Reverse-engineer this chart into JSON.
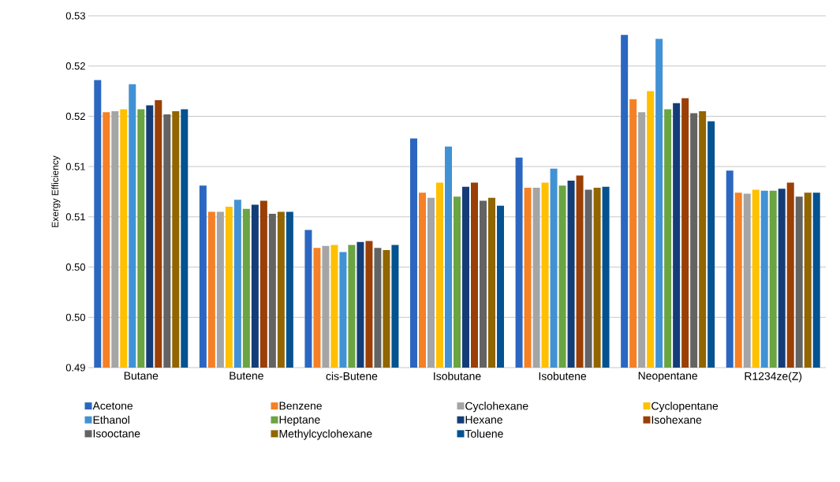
{
  "chart_data": {
    "type": "bar",
    "ylabel": "Exergy Efficiency",
    "categories": [
      "Butane",
      "Butene",
      "cis-Butene",
      "Isobutane",
      "Isobutene",
      "Neopentane",
      "R1234ze(Z)"
    ],
    "ylim": [
      0.49,
      0.525
    ],
    "yticks": [
      0.49,
      {
        "value": 0.495,
        "label": "0.50"
      },
      {
        "value": 0.5,
        "label": "0.50"
      },
      {
        "value": 0.505,
        "label": "0.51"
      },
      {
        "value": 0.51,
        "label": "0.51"
      },
      {
        "value": 0.515,
        "label": "0.52"
      },
      {
        "value": 0.52,
        "label": "0.52"
      },
      {
        "value": 0.525,
        "label": "0.53"
      }
    ],
    "grid": "y",
    "legend": "bottom",
    "series": [
      {
        "name": "Acetone",
        "color": "#2b67c0",
        "values": [
          0.5186,
          0.5081,
          0.5037,
          0.5128,
          0.5109,
          0.5231,
          0.5096
        ]
      },
      {
        "name": "Benzene",
        "color": "#f58025",
        "values": [
          0.5154,
          0.5055,
          0.5019,
          0.5074,
          0.5079,
          0.5167,
          0.5074
        ]
      },
      {
        "name": "Cyclohexane",
        "color": "#a5a5a5",
        "values": [
          0.5155,
          0.5055,
          0.5021,
          0.5069,
          0.5079,
          0.5154,
          0.5073
        ]
      },
      {
        "name": "Cyclopentane",
        "color": "#ffc000",
        "values": [
          0.5157,
          0.506,
          0.5022,
          0.5084,
          0.5084,
          0.5175,
          0.5077
        ]
      },
      {
        "name": "Ethanol",
        "color": "#4192d4",
        "values": [
          0.5182,
          0.5067,
          0.5015,
          0.512,
          0.5098,
          0.5227,
          0.5076
        ]
      },
      {
        "name": "Heptane",
        "color": "#6aa443",
        "values": [
          0.5157,
          0.5058,
          0.5022,
          0.507,
          0.5081,
          0.5157,
          0.5076
        ]
      },
      {
        "name": "Hexane",
        "color": "#143d78",
        "values": [
          0.5161,
          0.5062,
          0.5025,
          0.508,
          0.5086,
          0.5163,
          0.5078
        ]
      },
      {
        "name": "Isohexane",
        "color": "#9a3f06",
        "values": [
          0.5166,
          0.5066,
          0.5026,
          0.5084,
          0.5091,
          0.5168,
          0.5084
        ]
      },
      {
        "name": "Isooctane",
        "color": "#636363",
        "values": [
          0.5152,
          0.5053,
          0.5019,
          0.5066,
          0.5077,
          0.5153,
          0.507
        ]
      },
      {
        "name": "Methylcyclohexane",
        "color": "#916500",
        "values": [
          0.5155,
          0.5055,
          0.5017,
          0.5069,
          0.5079,
          0.5155,
          0.5074
        ]
      },
      {
        "name": "Toluene",
        "color": "#055291",
        "values": [
          0.5157,
          0.5055,
          0.5022,
          0.5061,
          0.508,
          0.5145,
          0.5074
        ]
      }
    ]
  }
}
